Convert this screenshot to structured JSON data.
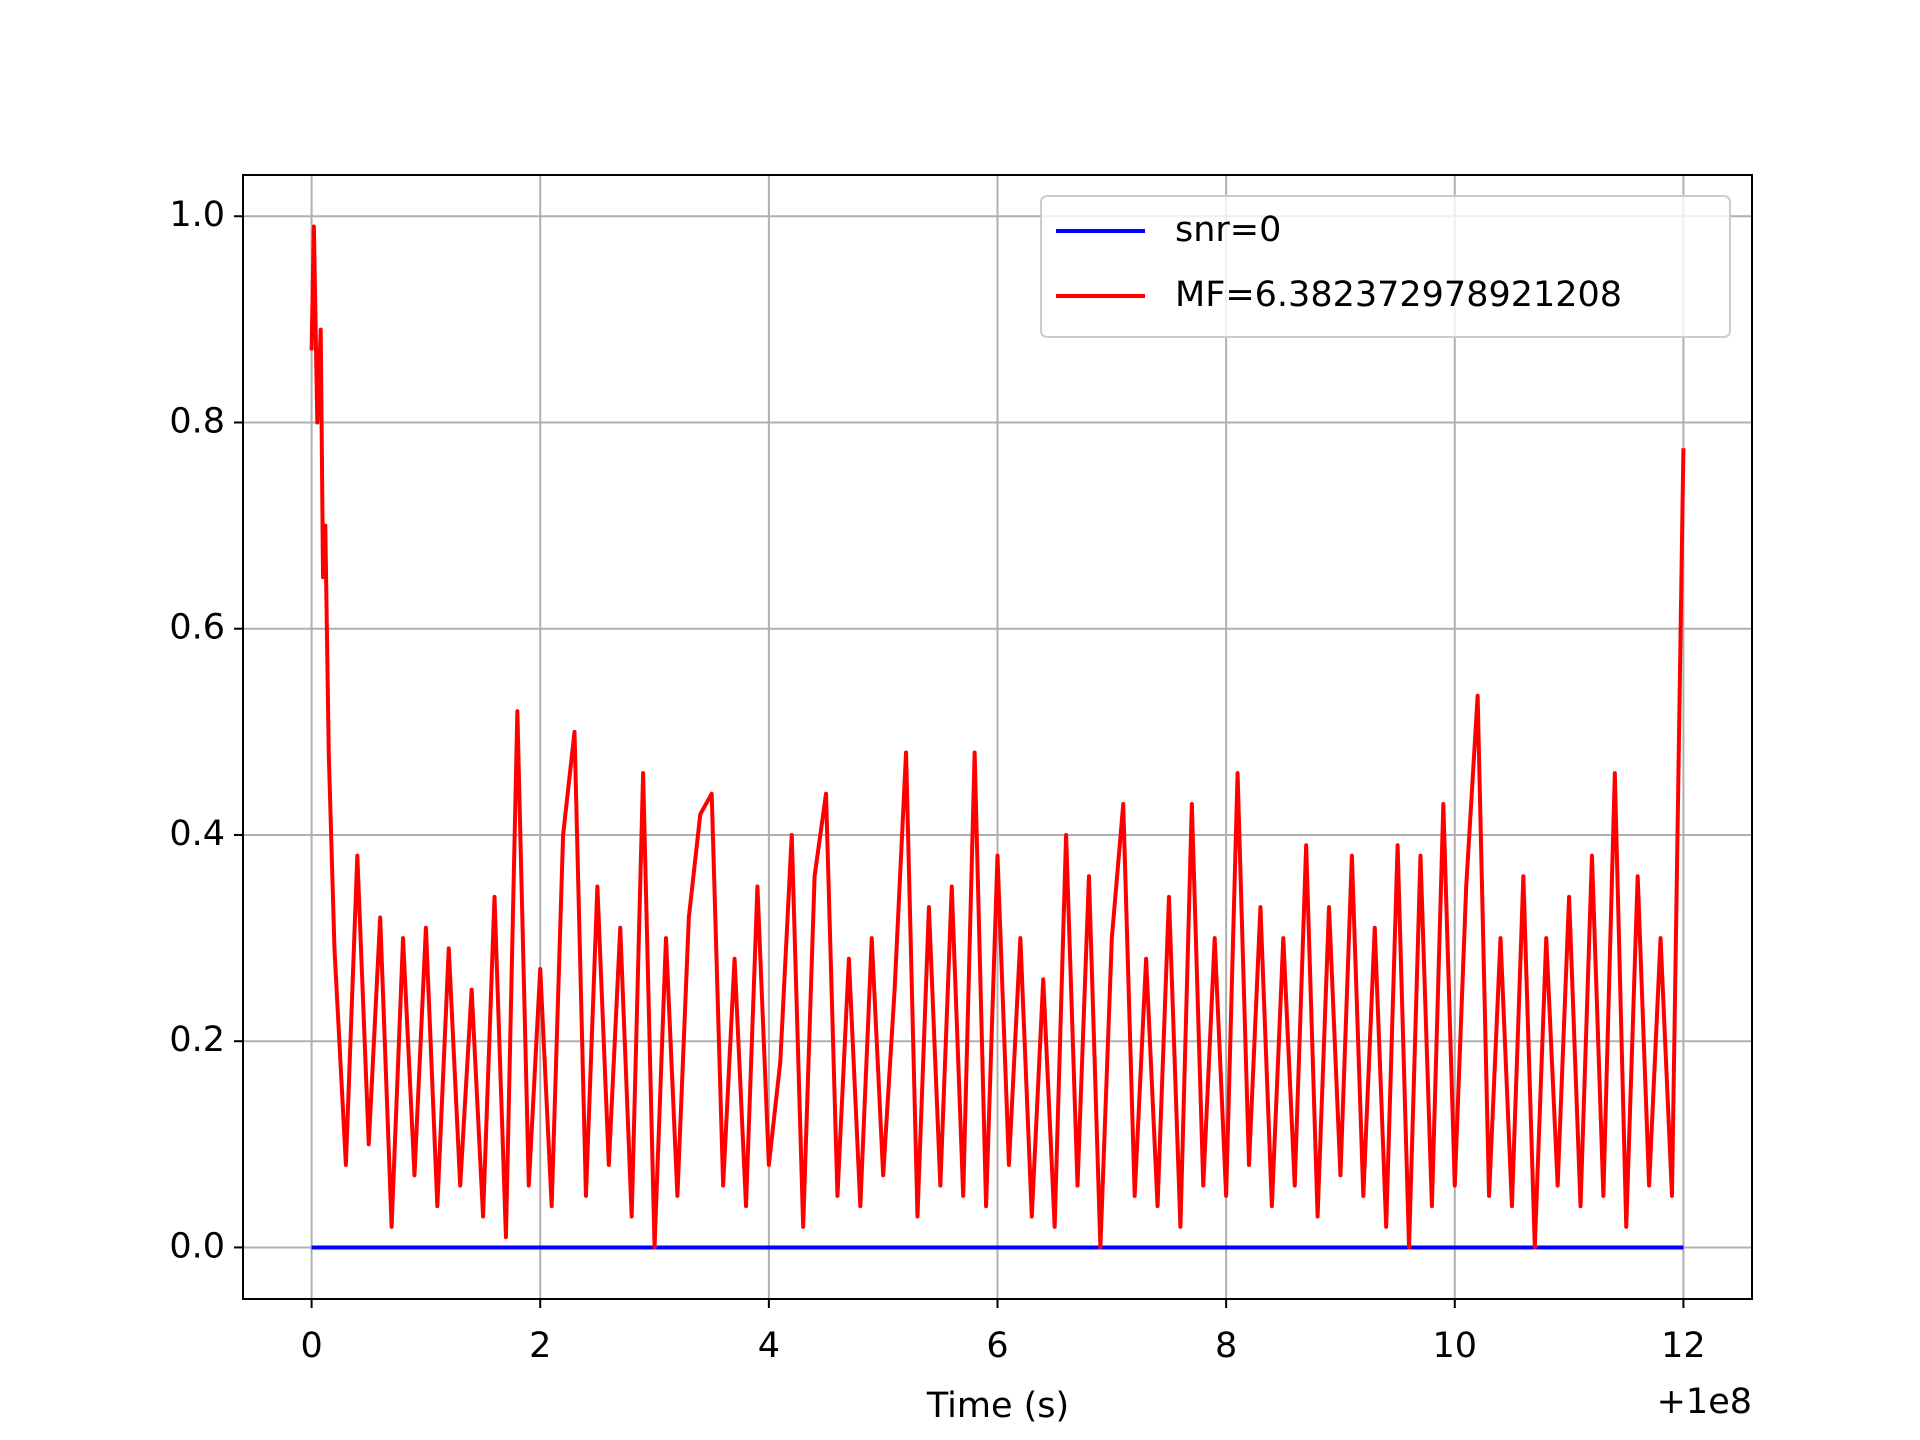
{
  "chart_data": {
    "type": "line",
    "xlabel": "Time (s)",
    "x_offset_label": "+1e8",
    "xlim": [
      -0.6,
      12.6
    ],
    "ylim": [
      -0.05,
      1.04
    ],
    "xticks": [
      0,
      2,
      4,
      6,
      8,
      10,
      12
    ],
    "yticks": [
      {
        "value": 0,
        "label": "0.0"
      },
      0.2,
      0.4,
      0.6,
      0.8,
      {
        "value": 1,
        "label": "1.0"
      }
    ],
    "grid": true,
    "legend": "upper right",
    "series": [
      {
        "name": "snr=0",
        "color": "#0000ff",
        "x": [
          0,
          12
        ],
        "values": [
          0,
          0
        ]
      },
      {
        "name": "MF=6.382372978921208",
        "color": "#ff0000",
        "x": [
          0,
          0.02,
          0.05,
          0.08,
          0.1,
          0.12,
          0.15,
          0.2,
          0.3,
          0.4,
          0.5,
          0.6,
          0.7,
          0.8,
          0.9,
          1.0,
          1.1,
          1.2,
          1.3,
          1.4,
          1.5,
          1.6,
          1.7,
          1.8,
          1.9,
          2.0,
          2.1,
          2.2,
          2.3,
          2.4,
          2.5,
          2.6,
          2.7,
          2.8,
          2.9,
          3.0,
          3.1,
          3.2,
          3.3,
          3.4,
          3.5,
          3.6,
          3.7,
          3.8,
          3.9,
          4.0,
          4.1,
          4.2,
          4.3,
          4.4,
          4.5,
          4.6,
          4.7,
          4.8,
          4.9,
          5.0,
          5.1,
          5.2,
          5.3,
          5.4,
          5.5,
          5.6,
          5.7,
          5.8,
          5.9,
          6.0,
          6.1,
          6.2,
          6.3,
          6.4,
          6.5,
          6.6,
          6.7,
          6.8,
          6.9,
          7.0,
          7.1,
          7.2,
          7.3,
          7.4,
          7.5,
          7.6,
          7.7,
          7.8,
          7.9,
          8.0,
          8.1,
          8.2,
          8.3,
          8.4,
          8.5,
          8.6,
          8.7,
          8.8,
          8.9,
          9.0,
          9.1,
          9.2,
          9.3,
          9.4,
          9.5,
          9.6,
          9.7,
          9.8,
          9.9,
          10.0,
          10.1,
          10.2,
          10.3,
          10.4,
          10.5,
          10.6,
          10.7,
          10.8,
          10.9,
          11.0,
          11.1,
          11.2,
          11.3,
          11.4,
          11.5,
          11.6,
          11.7,
          11.8,
          11.9,
          12.0
        ],
        "values": [
          0.87,
          0.99,
          0.8,
          0.89,
          0.65,
          0.7,
          0.48,
          0.29,
          0.08,
          0.38,
          0.1,
          0.32,
          0.02,
          0.3,
          0.07,
          0.31,
          0.04,
          0.29,
          0.06,
          0.25,
          0.03,
          0.34,
          0.01,
          0.52,
          0.06,
          0.27,
          0.04,
          0.4,
          0.5,
          0.05,
          0.35,
          0.08,
          0.31,
          0.03,
          0.46,
          0.0,
          0.3,
          0.05,
          0.32,
          0.42,
          0.44,
          0.06,
          0.28,
          0.04,
          0.35,
          0.08,
          0.18,
          0.4,
          0.02,
          0.36,
          0.44,
          0.05,
          0.28,
          0.04,
          0.3,
          0.07,
          0.25,
          0.48,
          0.03,
          0.33,
          0.06,
          0.35,
          0.05,
          0.48,
          0.04,
          0.38,
          0.08,
          0.3,
          0.03,
          0.26,
          0.02,
          0.4,
          0.06,
          0.36,
          0.0,
          0.3,
          0.43,
          0.05,
          0.28,
          0.04,
          0.34,
          0.02,
          0.43,
          0.06,
          0.3,
          0.05,
          0.46,
          0.08,
          0.33,
          0.04,
          0.3,
          0.06,
          0.39,
          0.03,
          0.33,
          0.07,
          0.38,
          0.05,
          0.31,
          0.02,
          0.39,
          0.0,
          0.38,
          0.04,
          0.43,
          0.06,
          0.35,
          0.535,
          0.05,
          0.3,
          0.04,
          0.36,
          0.0,
          0.3,
          0.06,
          0.34,
          0.04,
          0.38,
          0.05,
          0.46,
          0.02,
          0.36,
          0.06,
          0.3,
          0.05,
          0.775
        ]
      }
    ]
  }
}
